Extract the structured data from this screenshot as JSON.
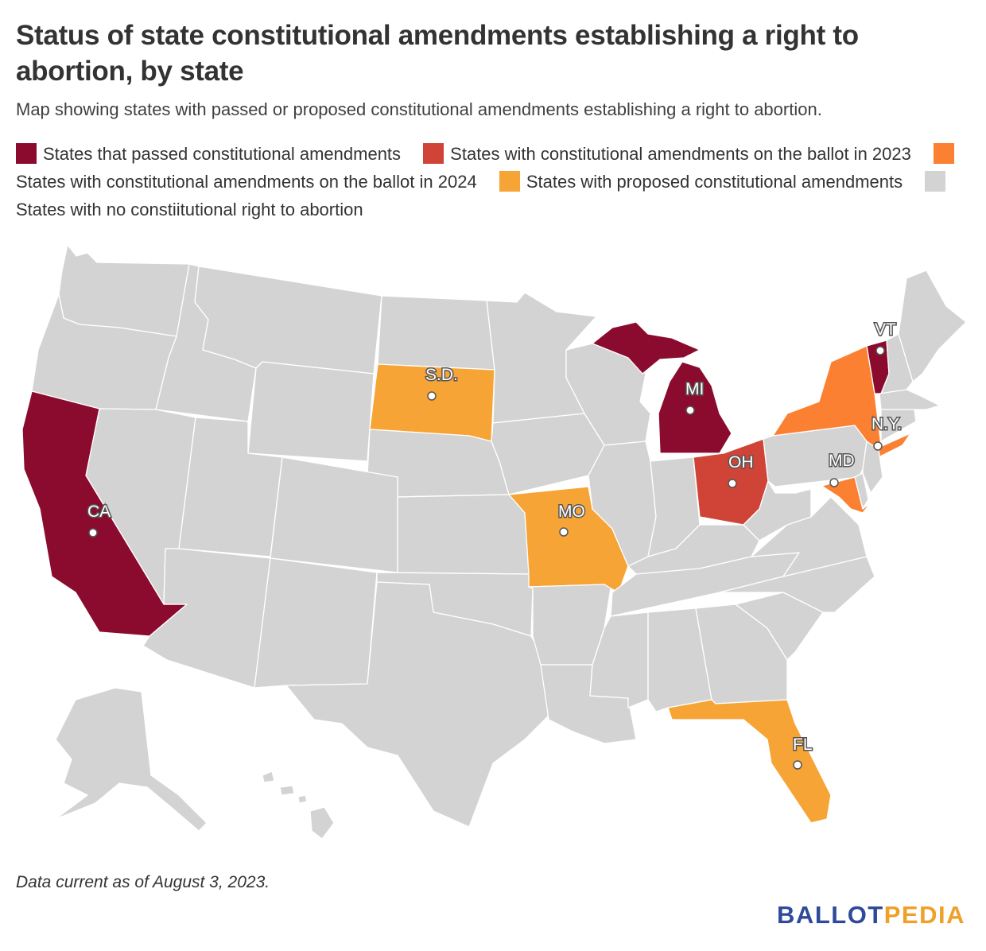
{
  "title": "Status of state constitutional amendments establishing a right to abortion, by state",
  "subtitle": "Map showing states with passed or proposed constitutional amendments establishing a right to abortion.",
  "colors": {
    "passed": "#8a0b2e",
    "ballot2023": "#cf4437",
    "ballot2024": "#fb8031",
    "proposed": "#f7a437",
    "none": "#d3d3d3"
  },
  "legend": [
    {
      "key": "passed",
      "label": "States that passed constitutional amendments"
    },
    {
      "key": "ballot2023",
      "label": "States with constitutional amendments on the ballot in 2023"
    },
    {
      "key": "ballot2024",
      "label": "States with constitutional amendments on the ballot in 2024"
    },
    {
      "key": "proposed",
      "label": "States with proposed constitutional amendments"
    },
    {
      "key": "none",
      "label": "States with no constiitutional right to abortion"
    }
  ],
  "state_labels": {
    "CA": "CA",
    "SD": "S.D.",
    "MI": "MI",
    "VT": "VT",
    "NY": "N.Y.",
    "OH": "OH",
    "MD": "MD",
    "MO": "MO",
    "FL": "FL"
  },
  "footnote": "Data current as of August 3, 2023.",
  "logo": {
    "part1": "BALLOT",
    "part2": "PEDIA"
  }
}
